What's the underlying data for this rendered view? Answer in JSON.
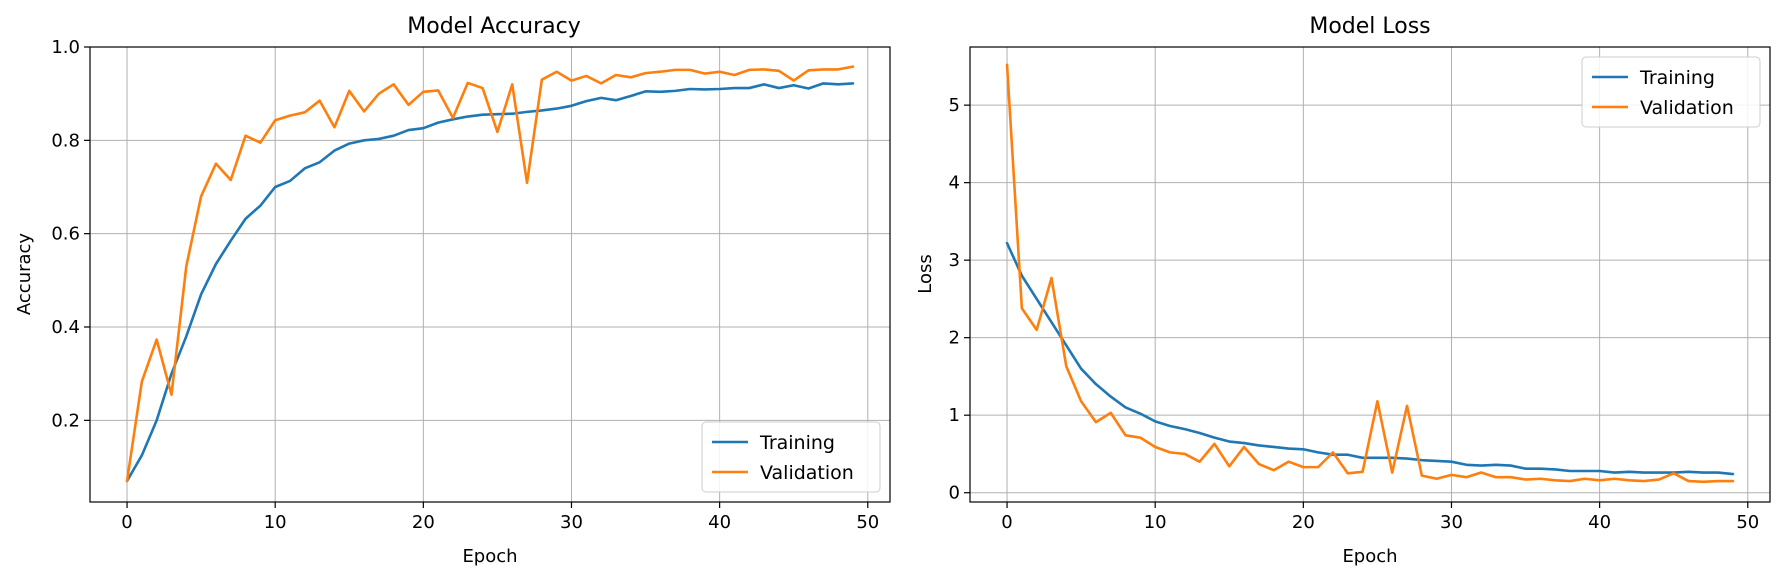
{
  "chart_data": [
    {
      "type": "line",
      "title": "Model Accuracy",
      "xlabel": "Epoch",
      "ylabel": "Accuracy",
      "xlim": [
        -2.5,
        51.5
      ],
      "ylim": [
        0.025,
        1.0
      ],
      "xticks": [
        0,
        10,
        20,
        30,
        40,
        50
      ],
      "yticks": [
        0.2,
        0.4,
        0.6,
        0.8,
        1.0
      ],
      "xtick_labels": [
        "0",
        "10",
        "20",
        "30",
        "40",
        "50"
      ],
      "ytick_labels": [
        "0.2",
        "0.4",
        "0.6",
        "0.8",
        "1.0"
      ],
      "grid": true,
      "legend_position": "lower-right",
      "x": [
        0,
        1,
        2,
        3,
        4,
        5,
        6,
        7,
        8,
        9,
        10,
        11,
        12,
        13,
        14,
        15,
        16,
        17,
        18,
        19,
        20,
        21,
        22,
        23,
        24,
        25,
        26,
        27,
        28,
        29,
        30,
        31,
        32,
        33,
        34,
        35,
        36,
        37,
        38,
        39,
        40,
        41,
        42,
        43,
        44,
        45,
        46,
        47,
        48,
        49
      ],
      "series": [
        {
          "name": "Training",
          "color": "#1f77b4",
          "values": [
            0.07,
            0.125,
            0.2,
            0.3,
            0.38,
            0.47,
            0.535,
            0.585,
            0.632,
            0.66,
            0.7,
            0.713,
            0.74,
            0.753,
            0.778,
            0.793,
            0.8,
            0.803,
            0.81,
            0.822,
            0.826,
            0.838,
            0.845,
            0.851,
            0.855,
            0.856,
            0.857,
            0.861,
            0.864,
            0.868,
            0.874,
            0.884,
            0.891,
            0.886,
            0.895,
            0.905,
            0.904,
            0.906,
            0.91,
            0.909,
            0.91,
            0.912,
            0.912,
            0.92,
            0.912,
            0.918,
            0.911,
            0.922,
            0.92,
            0.922
          ]
        },
        {
          "name": "Validation",
          "color": "#ff7f0e",
          "values": [
            0.07,
            0.283,
            0.373,
            0.255,
            0.53,
            0.68,
            0.75,
            0.715,
            0.81,
            0.795,
            0.843,
            0.853,
            0.86,
            0.885,
            0.828,
            0.906,
            0.862,
            0.9,
            0.92,
            0.876,
            0.904,
            0.907,
            0.848,
            0.923,
            0.912,
            0.818,
            0.92,
            0.709,
            0.93,
            0.947,
            0.928,
            0.938,
            0.922,
            0.94,
            0.935,
            0.944,
            0.947,
            0.951,
            0.951,
            0.943,
            0.947,
            0.94,
            0.951,
            0.952,
            0.949,
            0.928,
            0.95,
            0.952,
            0.952,
            0.958
          ]
        }
      ]
    },
    {
      "type": "line",
      "title": "Model Loss",
      "xlabel": "Epoch",
      "ylabel": "Loss",
      "xlim": [
        -2.5,
        51.5
      ],
      "ylim": [
        -0.12,
        5.75
      ],
      "xticks": [
        0,
        10,
        20,
        30,
        40,
        50
      ],
      "yticks": [
        0,
        1,
        2,
        3,
        4,
        5
      ],
      "xtick_labels": [
        "0",
        "10",
        "20",
        "30",
        "40",
        "50"
      ],
      "ytick_labels": [
        "0",
        "1",
        "2",
        "3",
        "4",
        "5"
      ],
      "grid": true,
      "legend_position": "upper-right",
      "x": [
        0,
        1,
        2,
        3,
        4,
        5,
        6,
        7,
        8,
        9,
        10,
        11,
        12,
        13,
        14,
        15,
        16,
        17,
        18,
        19,
        20,
        21,
        22,
        23,
        24,
        25,
        26,
        27,
        28,
        29,
        30,
        31,
        32,
        33,
        34,
        35,
        36,
        37,
        38,
        39,
        40,
        41,
        42,
        43,
        44,
        45,
        46,
        47,
        48,
        49
      ],
      "series": [
        {
          "name": "Training",
          "color": "#1f77b4",
          "values": [
            3.22,
            2.8,
            2.5,
            2.2,
            1.9,
            1.6,
            1.4,
            1.24,
            1.1,
            1.02,
            0.92,
            0.86,
            0.82,
            0.77,
            0.71,
            0.66,
            0.64,
            0.61,
            0.59,
            0.57,
            0.56,
            0.52,
            0.49,
            0.49,
            0.45,
            0.45,
            0.45,
            0.44,
            0.42,
            0.41,
            0.4,
            0.36,
            0.35,
            0.36,
            0.35,
            0.31,
            0.31,
            0.3,
            0.28,
            0.28,
            0.28,
            0.26,
            0.27,
            0.26,
            0.26,
            0.26,
            0.27,
            0.26,
            0.26,
            0.24
          ]
        },
        {
          "name": "Validation",
          "color": "#ff7f0e",
          "values": [
            5.52,
            2.38,
            2.1,
            2.77,
            1.63,
            1.18,
            0.91,
            1.03,
            0.74,
            0.71,
            0.59,
            0.52,
            0.5,
            0.4,
            0.63,
            0.34,
            0.59,
            0.37,
            0.29,
            0.4,
            0.33,
            0.33,
            0.52,
            0.25,
            0.27,
            1.18,
            0.26,
            1.12,
            0.22,
            0.18,
            0.23,
            0.2,
            0.26,
            0.2,
            0.2,
            0.17,
            0.18,
            0.16,
            0.15,
            0.18,
            0.16,
            0.18,
            0.16,
            0.15,
            0.17,
            0.25,
            0.15,
            0.14,
            0.15,
            0.15
          ]
        }
      ]
    }
  ]
}
